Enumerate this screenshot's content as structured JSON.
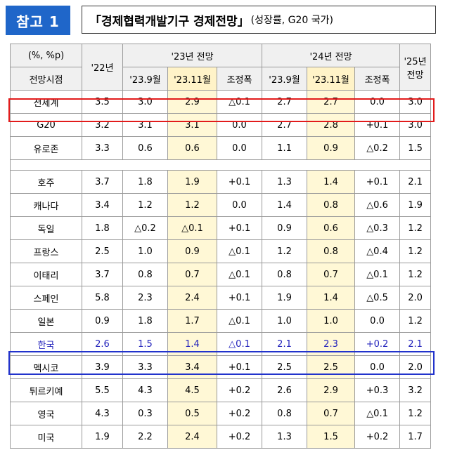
{
  "header": {
    "badge": "참고 1",
    "title_main": "「경제협력개발기구 경제전망」",
    "title_sub": "(성장률, G20 국가)"
  },
  "table": {
    "unit_label": "(%, %p)",
    "outlook_label": "전망시점",
    "col_22": "'22년",
    "col_23_group": "'23년 전망",
    "col_24_group": "'24년 전망",
    "col_25": "'25년 전망",
    "sub_sep": "'23.9월",
    "sub_nov": "'23.11월",
    "sub_adj": "조정폭",
    "rows_top": [
      {
        "name": "전세계",
        "v22": "3.5",
        "a_sep": "3.0",
        "a_nov": "2.9",
        "a_adj": "△0.1",
        "b_sep": "2.7",
        "b_nov": "2.7",
        "b_adj": "0.0",
        "v25": "3.0"
      },
      {
        "name": "G20",
        "v22": "3.2",
        "a_sep": "3.1",
        "a_nov": "3.1",
        "a_adj": "0.0",
        "b_sep": "2.7",
        "b_nov": "2.8",
        "b_adj": "+0.1",
        "v25": "3.0"
      },
      {
        "name": "유로존",
        "v22": "3.3",
        "a_sep": "0.6",
        "a_nov": "0.6",
        "a_adj": "0.0",
        "b_sep": "1.1",
        "b_nov": "0.9",
        "b_adj": "△0.2",
        "v25": "1.5"
      }
    ],
    "rows_countries": [
      {
        "name": "호주",
        "v22": "3.7",
        "a_sep": "1.8",
        "a_nov": "1.9",
        "a_adj": "+0.1",
        "b_sep": "1.3",
        "b_nov": "1.4",
        "b_adj": "+0.1",
        "v25": "2.1"
      },
      {
        "name": "캐나다",
        "v22": "3.4",
        "a_sep": "1.2",
        "a_nov": "1.2",
        "a_adj": "0.0",
        "b_sep": "1.4",
        "b_nov": "0.8",
        "b_adj": "△0.6",
        "v25": "1.9"
      },
      {
        "name": "독일",
        "v22": "1.8",
        "a_sep": "△0.2",
        "a_nov": "△0.1",
        "a_adj": "+0.1",
        "b_sep": "0.9",
        "b_nov": "0.6",
        "b_adj": "△0.3",
        "v25": "1.2"
      },
      {
        "name": "프랑스",
        "v22": "2.5",
        "a_sep": "1.0",
        "a_nov": "0.9",
        "a_adj": "△0.1",
        "b_sep": "1.2",
        "b_nov": "0.8",
        "b_adj": "△0.4",
        "v25": "1.2"
      },
      {
        "name": "이태리",
        "v22": "3.7",
        "a_sep": "0.8",
        "a_nov": "0.7",
        "a_adj": "△0.1",
        "b_sep": "0.8",
        "b_nov": "0.7",
        "b_adj": "△0.1",
        "v25": "1.2"
      },
      {
        "name": "스페인",
        "v22": "5.8",
        "a_sep": "2.3",
        "a_nov": "2.4",
        "a_adj": "+0.1",
        "b_sep": "1.9",
        "b_nov": "1.4",
        "b_adj": "△0.5",
        "v25": "2.0"
      },
      {
        "name": "일본",
        "v22": "0.9",
        "a_sep": "1.8",
        "a_nov": "1.7",
        "a_adj": "△0.1",
        "b_sep": "1.0",
        "b_nov": "1.0",
        "b_adj": "0.0",
        "v25": "1.2"
      },
      {
        "name": "한국",
        "v22": "2.6",
        "a_sep": "1.5",
        "a_nov": "1.4",
        "a_adj": "△0.1",
        "b_sep": "2.1",
        "b_nov": "2.3",
        "b_adj": "+0.2",
        "v25": "2.1"
      },
      {
        "name": "멕시코",
        "v22": "3.9",
        "a_sep": "3.3",
        "a_nov": "3.4",
        "a_adj": "+0.1",
        "b_sep": "2.5",
        "b_nov": "2.5",
        "b_adj": "0.0",
        "v25": "2.0"
      },
      {
        "name": "튀르키예",
        "v22": "5.5",
        "a_sep": "4.3",
        "a_nov": "4.5",
        "a_adj": "+0.2",
        "b_sep": "2.6",
        "b_nov": "2.9",
        "b_adj": "+0.3",
        "v25": "3.2"
      },
      {
        "name": "영국",
        "v22": "4.3",
        "a_sep": "0.3",
        "a_nov": "0.5",
        "a_adj": "+0.2",
        "b_sep": "0.8",
        "b_nov": "0.7",
        "b_adj": "△0.1",
        "v25": "1.2"
      },
      {
        "name": "미국",
        "v22": "1.9",
        "a_sep": "2.2",
        "a_nov": "2.4",
        "a_adj": "+0.2",
        "b_sep": "1.3",
        "b_nov": "1.5",
        "b_adj": "+0.2",
        "v25": "1.7"
      }
    ]
  },
  "colors": {
    "badge_blue": "#1f66c9",
    "highlight_world": "#e21b1b",
    "highlight_korea": "#2233cc",
    "column_highlight": "#fff8d6"
  }
}
